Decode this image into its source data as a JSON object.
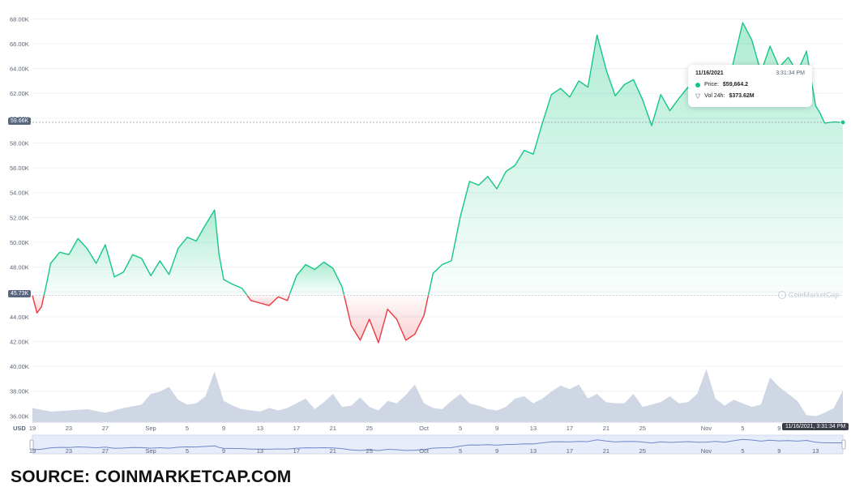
{
  "chart_data": {
    "type": "area",
    "currency_label": "USD",
    "y_ticks": [
      "36.00K",
      "38.00K",
      "40.00K",
      "42.00K",
      "44.00K",
      "46.00K",
      "48.00K",
      "50.00K",
      "52.00K",
      "54.00K",
      "56.00K",
      "58.00K",
      "60.00K",
      "62.00K",
      "64.00K",
      "66.00K",
      "68.00K"
    ],
    "ylim": [
      35500,
      69000
    ],
    "x_ticks": [
      "19",
      "23",
      "27",
      "Sep",
      "5",
      "9",
      "13",
      "17",
      "21",
      "25",
      "Oct",
      "5",
      "9",
      "13",
      "17",
      "21",
      "25",
      "Nov",
      "5",
      "9",
      "13"
    ],
    "x_tick_days": [
      0,
      4,
      8,
      13,
      17,
      21,
      25,
      29,
      33,
      37,
      43,
      47,
      51,
      55,
      59,
      63,
      67,
      74,
      78,
      82,
      86
    ],
    "x_range_days": [
      0,
      89
    ],
    "baseline_price": 45730,
    "baseline_label": "45.73K",
    "current_price": 59664.2,
    "current_label": "59.66K",
    "up_color": "#16c784",
    "down_color": "#ea3943",
    "volume_color": "#cfd6e4",
    "price_series": [
      [
        0,
        45.7
      ],
      [
        0.5,
        44.3
      ],
      [
        1,
        44.8
      ],
      [
        1.5,
        46.5
      ],
      [
        2,
        48.3
      ],
      [
        3,
        49.2
      ],
      [
        4,
        49.0
      ],
      [
        5,
        50.3
      ],
      [
        6,
        49.5
      ],
      [
        7,
        48.3
      ],
      [
        8,
        49.8
      ],
      [
        9,
        47.2
      ],
      [
        10,
        47.6
      ],
      [
        11,
        49.0
      ],
      [
        12,
        48.7
      ],
      [
        13,
        47.3
      ],
      [
        14,
        48.5
      ],
      [
        15,
        47.4
      ],
      [
        16,
        49.5
      ],
      [
        17,
        50.4
      ],
      [
        18,
        50.1
      ],
      [
        19,
        51.4
      ],
      [
        20,
        52.6
      ],
      [
        20.5,
        49.0
      ],
      [
        21,
        47.0
      ],
      [
        22,
        46.6
      ],
      [
        23,
        46.3
      ],
      [
        24,
        45.3
      ],
      [
        25,
        45.1
      ],
      [
        26,
        44.9
      ],
      [
        27,
        45.6
      ],
      [
        28,
        45.3
      ],
      [
        29,
        47.3
      ],
      [
        30,
        48.2
      ],
      [
        31,
        47.8
      ],
      [
        32,
        48.4
      ],
      [
        33,
        47.9
      ],
      [
        34,
        46.4
      ],
      [
        35,
        43.3
      ],
      [
        36,
        42.1
      ],
      [
        37,
        43.8
      ],
      [
        38,
        41.9
      ],
      [
        39,
        44.6
      ],
      [
        40,
        43.8
      ],
      [
        41,
        42.1
      ],
      [
        42,
        42.6
      ],
      [
        43,
        44.1
      ],
      [
        44,
        47.5
      ],
      [
        45,
        48.2
      ],
      [
        46,
        48.5
      ],
      [
        47,
        52.1
      ],
      [
        48,
        54.9
      ],
      [
        49,
        54.6
      ],
      [
        50,
        55.3
      ],
      [
        51,
        54.3
      ],
      [
        52,
        55.7
      ],
      [
        53,
        56.2
      ],
      [
        54,
        57.4
      ],
      [
        55,
        57.1
      ],
      [
        56,
        59.6
      ],
      [
        57,
        61.9
      ],
      [
        58,
        62.4
      ],
      [
        59,
        61.7
      ],
      [
        60,
        63.0
      ],
      [
        61,
        62.5
      ],
      [
        62,
        66.7
      ],
      [
        63,
        63.9
      ],
      [
        64,
        61.8
      ],
      [
        65,
        62.7
      ],
      [
        66,
        63.1
      ],
      [
        67,
        61.5
      ],
      [
        68,
        59.4
      ],
      [
        69,
        61.9
      ],
      [
        70,
        60.6
      ],
      [
        71,
        61.6
      ],
      [
        72,
        62.5
      ],
      [
        73,
        61.2
      ],
      [
        74,
        61.3
      ],
      [
        75,
        62.8
      ],
      [
        76,
        61.1
      ],
      [
        77,
        64.6
      ],
      [
        78,
        67.7
      ],
      [
        79,
        66.3
      ],
      [
        80,
        63.7
      ],
      [
        81,
        65.8
      ],
      [
        82,
        64.1
      ],
      [
        83,
        64.9
      ],
      [
        84,
        63.7
      ],
      [
        85,
        65.4
      ],
      [
        86,
        61.0
      ],
      [
        86.5,
        60.4
      ],
      [
        87,
        59.6
      ],
      [
        88,
        59.7
      ],
      [
        89,
        59.66
      ]
    ],
    "volume_series": [
      [
        0,
        37.2
      ],
      [
        2,
        36.9
      ],
      [
        4,
        37.0
      ],
      [
        6,
        37.1
      ],
      [
        8,
        36.8
      ],
      [
        10,
        37.2
      ],
      [
        12,
        37.5
      ],
      [
        13,
        38.4
      ],
      [
        14,
        38.6
      ],
      [
        15,
        39.0
      ],
      [
        16,
        37.9
      ],
      [
        17,
        37.5
      ],
      [
        18,
        37.6
      ],
      [
        19,
        38.2
      ],
      [
        20,
        40.3
      ],
      [
        21,
        37.8
      ],
      [
        22,
        37.4
      ],
      [
        23,
        37.1
      ],
      [
        24,
        37.0
      ],
      [
        25,
        36.9
      ],
      [
        26,
        37.2
      ],
      [
        27,
        37.0
      ],
      [
        28,
        37.2
      ],
      [
        29,
        37.6
      ],
      [
        30,
        38.0
      ],
      [
        31,
        37.1
      ],
      [
        32,
        37.7
      ],
      [
        33,
        38.4
      ],
      [
        34,
        37.3
      ],
      [
        35,
        37.4
      ],
      [
        36,
        38.1
      ],
      [
        37,
        37.3
      ],
      [
        38,
        37.0
      ],
      [
        39,
        37.8
      ],
      [
        40,
        37.6
      ],
      [
        41,
        38.3
      ],
      [
        42,
        39.2
      ],
      [
        43,
        37.6
      ],
      [
        44,
        37.2
      ],
      [
        45,
        37.1
      ],
      [
        46,
        37.8
      ],
      [
        47,
        38.4
      ],
      [
        48,
        37.6
      ],
      [
        49,
        37.4
      ],
      [
        50,
        37.1
      ],
      [
        51,
        37.0
      ],
      [
        52,
        37.3
      ],
      [
        53,
        38.0
      ],
      [
        54,
        38.2
      ],
      [
        55,
        37.6
      ],
      [
        56,
        38.0
      ],
      [
        57,
        38.6
      ],
      [
        58,
        39.1
      ],
      [
        59,
        38.8
      ],
      [
        60,
        39.2
      ],
      [
        61,
        38.0
      ],
      [
        62,
        38.4
      ],
      [
        63,
        37.7
      ],
      [
        64,
        37.6
      ],
      [
        65,
        37.6
      ],
      [
        66,
        38.4
      ],
      [
        67,
        37.3
      ],
      [
        68,
        37.5
      ],
      [
        69,
        37.7
      ],
      [
        70,
        38.2
      ],
      [
        71,
        37.6
      ],
      [
        72,
        37.7
      ],
      [
        73,
        38.4
      ],
      [
        74,
        40.5
      ],
      [
        75,
        38.0
      ],
      [
        76,
        37.4
      ],
      [
        77,
        37.9
      ],
      [
        78,
        37.6
      ],
      [
        79,
        37.3
      ],
      [
        80,
        37.5
      ],
      [
        81,
        39.8
      ],
      [
        82,
        39.0
      ],
      [
        83,
        38.4
      ],
      [
        84,
        37.8
      ],
      [
        85,
        36.6
      ],
      [
        86,
        36.5
      ],
      [
        87,
        36.8
      ],
      [
        88,
        37.2
      ],
      [
        89,
        38.7
      ]
    ],
    "volume_scale": [
      36.0,
      41.5
    ]
  },
  "tooltip": {
    "date": "11/16/2021",
    "time": "3:31:34 PM",
    "price_label": "Price:",
    "price_value": "$59,664.2",
    "volume_label": "Vol 24h:",
    "volume_value": "$373.62M"
  },
  "crosshair_label": "11/16/2021, 3:31:34 PM",
  "watermark": "CoinMarketCap",
  "source_text": "SOURCE: COINMARKETCAP.COM"
}
